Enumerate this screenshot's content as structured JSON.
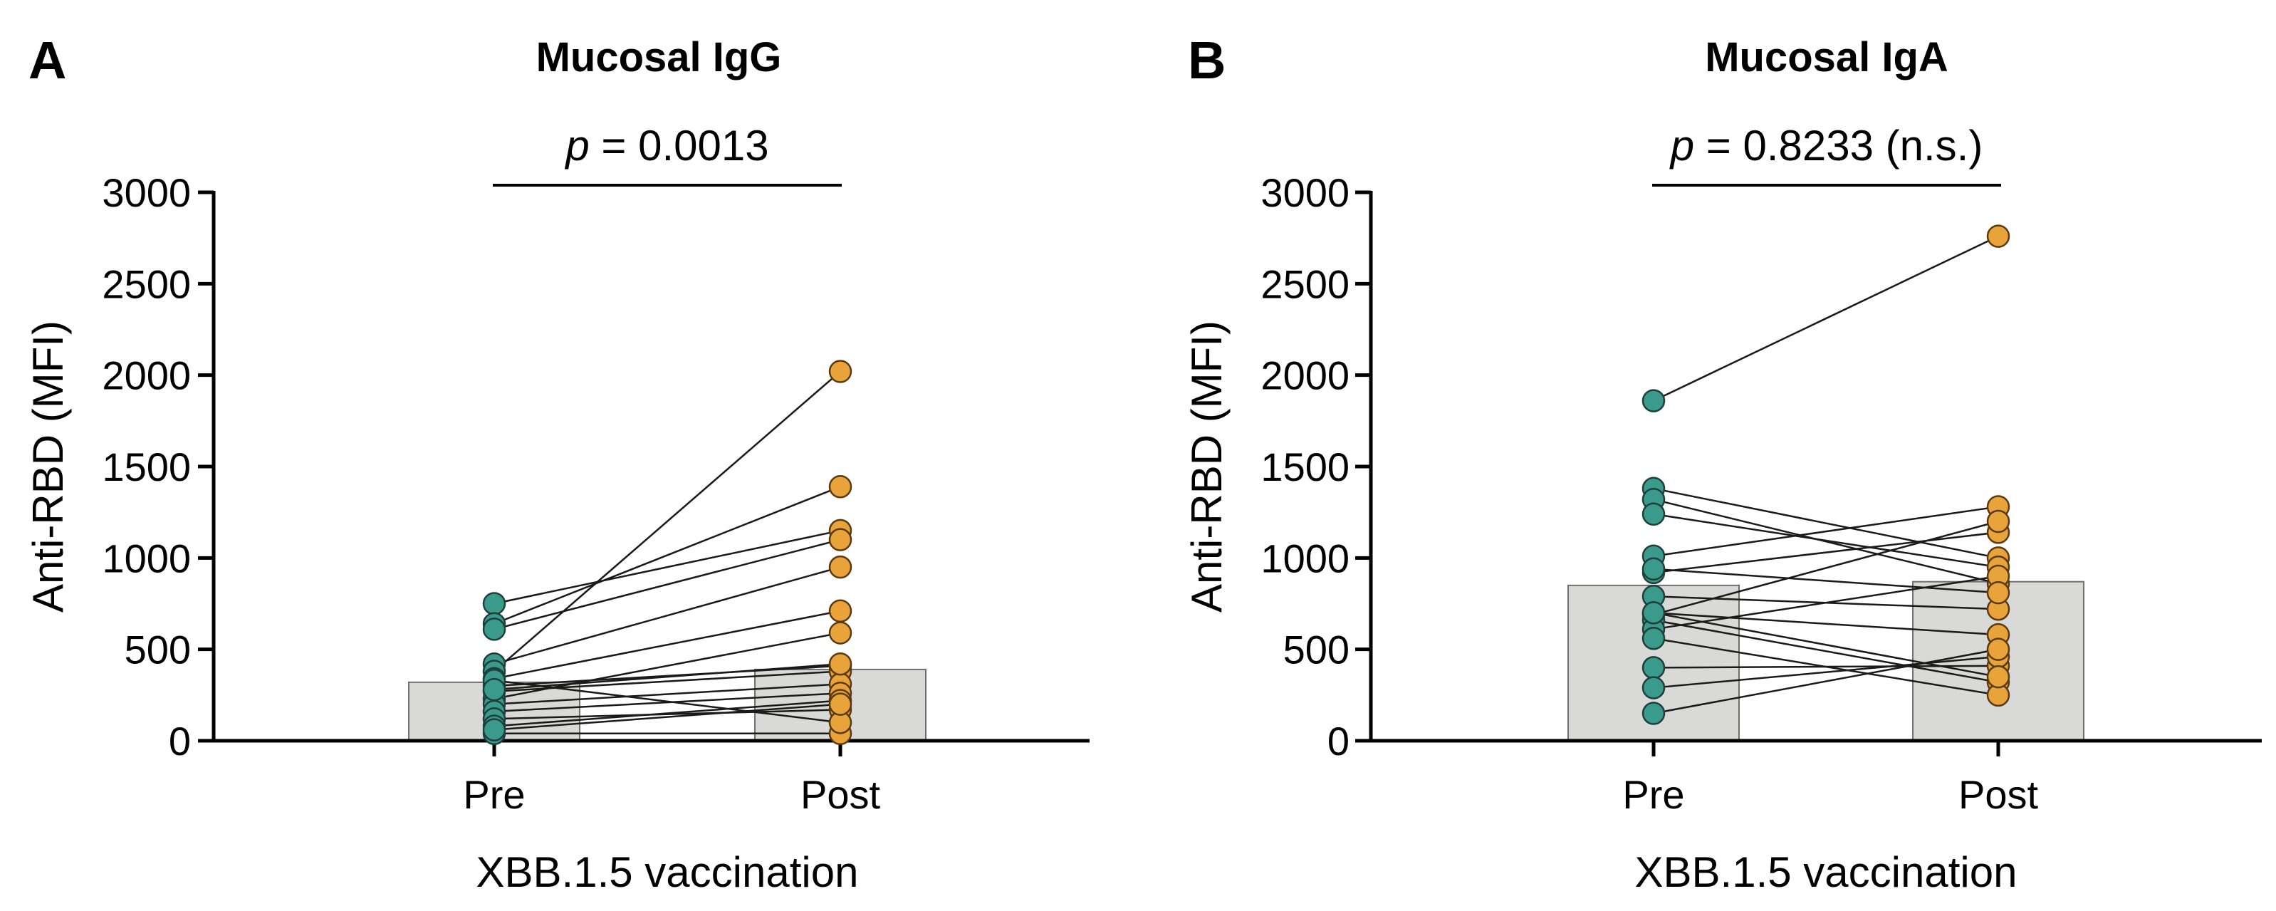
{
  "figure": {
    "panels": [
      "A",
      "B"
    ]
  },
  "chart_data": [
    {
      "type": "scatter",
      "panel": "A",
      "title": "Mucosal IgG",
      "annotation": {
        "p_prefix": "p",
        "p_text": " = 0.0013"
      },
      "ylabel": "Anti-RBD (MFI)",
      "xlabel": "XBB.1.5 vaccination",
      "categories": [
        "Pre",
        "Post"
      ],
      "ylim": [
        0,
        3000
      ],
      "yticks": [
        0,
        500,
        1000,
        1500,
        2000,
        2500,
        3000
      ],
      "bar_values": [
        320,
        390
      ],
      "pre_color": "#3a9a8c",
      "post_color": "#e8a33a",
      "bar_color": "#d9d9d7",
      "pairs": [
        [
          750,
          1150
        ],
        [
          640,
          1390
        ],
        [
          610,
          1100
        ],
        [
          420,
          950
        ],
        [
          380,
          2020
        ],
        [
          340,
          710
        ],
        [
          300,
          410
        ],
        [
          270,
          380
        ],
        [
          230,
          590
        ],
        [
          200,
          310
        ],
        [
          160,
          260
        ],
        [
          120,
          170
        ],
        [
          80,
          220
        ],
        [
          40,
          40
        ],
        [
          330,
          100
        ],
        [
          280,
          420
        ],
        [
          60,
          200
        ]
      ]
    },
    {
      "type": "scatter",
      "panel": "B",
      "title": "Mucosal IgA",
      "annotation": {
        "p_prefix": "p",
        "p_text": " = 0.8233 (n.s.)"
      },
      "ylabel": "Anti-RBD (MFI)",
      "xlabel": "XBB.1.5 vaccination",
      "categories": [
        "Pre",
        "Post"
      ],
      "ylim": [
        0,
        3000
      ],
      "yticks": [
        0,
        500,
        1000,
        1500,
        2000,
        2500,
        3000
      ],
      "bar_values": [
        850,
        870
      ],
      "pre_color": "#3a9a8c",
      "post_color": "#e8a33a",
      "bar_color": "#d9d9d7",
      "pairs": [
        [
          1860,
          2760
        ],
        [
          1380,
          1000
        ],
        [
          1320,
          860
        ],
        [
          1240,
          950
        ],
        [
          1010,
          1280
        ],
        [
          920,
          1140
        ],
        [
          790,
          720
        ],
        [
          700,
          580
        ],
        [
          690,
          1200
        ],
        [
          660,
          320
        ],
        [
          610,
          900
        ],
        [
          560,
          250
        ],
        [
          400,
          410
        ],
        [
          290,
          460
        ],
        [
          150,
          500
        ],
        [
          700,
          350
        ],
        [
          940,
          810
        ]
      ]
    }
  ]
}
